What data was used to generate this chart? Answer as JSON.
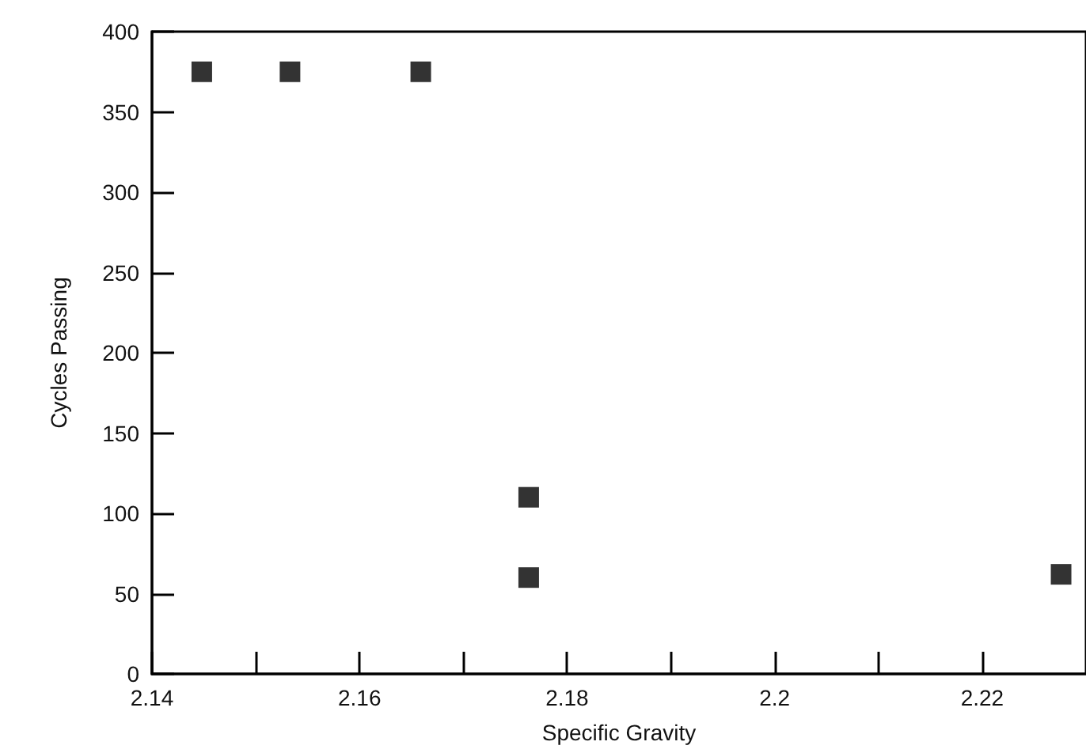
{
  "chart_data": {
    "type": "scatter",
    "xlabel": "Specific Gravity",
    "ylabel": "Cycles Passing",
    "x": [
      2.1448,
      2.1533,
      2.1659,
      2.1763,
      2.1763,
      2.2276
    ],
    "values": [
      375,
      375,
      375,
      110,
      60,
      62
    ],
    "color": "#000000",
    "marker": "square",
    "xlim": [
      2.14,
      2.23
    ],
    "xticks": [
      2.14,
      {
        "value": 2.15,
        "label": null
      },
      2.16,
      {
        "value": 2.17,
        "label": null
      },
      2.18,
      {
        "value": 2.19,
        "label": null
      },
      2.2,
      {
        "value": 2.21,
        "label": null
      },
      2.22
    ],
    "ylim": [
      0,
      400
    ],
    "yticks": [
      0,
      50,
      100,
      150,
      200,
      250,
      300,
      350,
      400
    ],
    "grid": false
  }
}
